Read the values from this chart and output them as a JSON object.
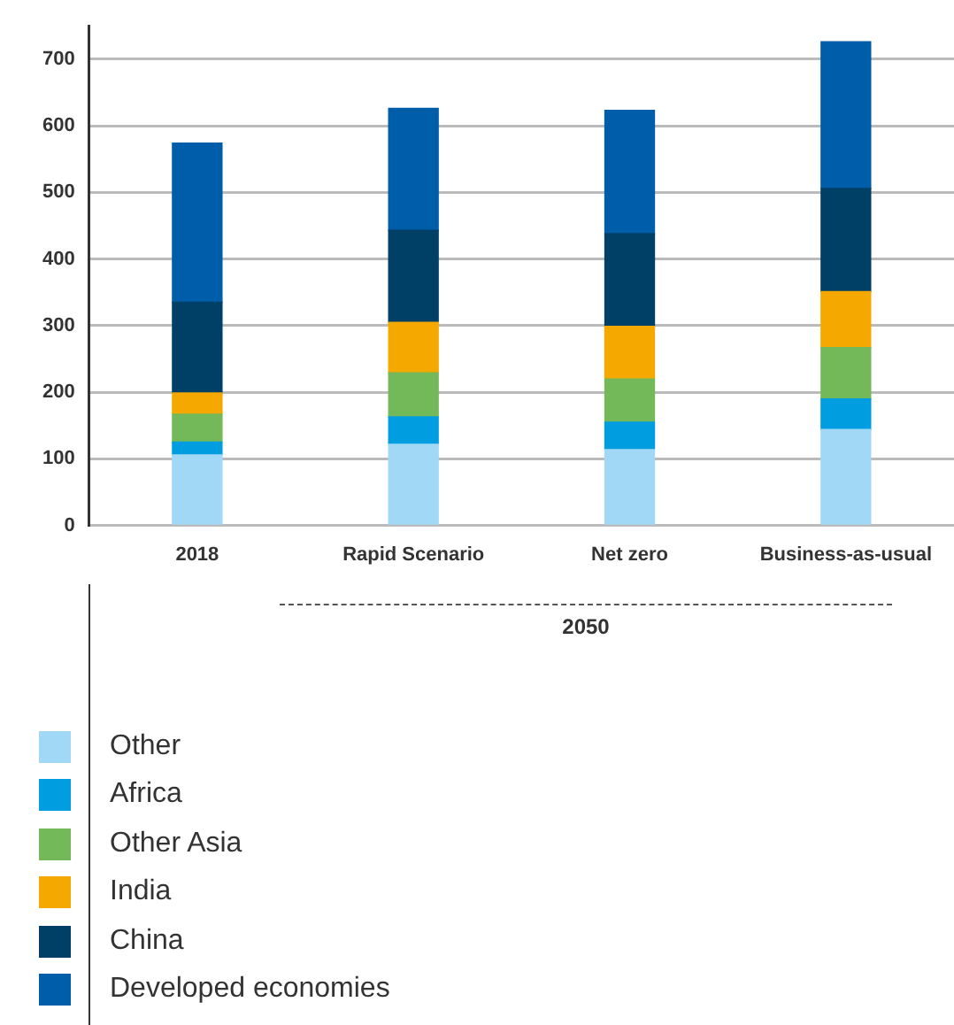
{
  "chart_data": {
    "type": "bar",
    "stacked": true,
    "categories": [
      "2018",
      "Rapid Scenario",
      "Net zero",
      "Business-as-usual"
    ],
    "series": [
      {
        "name": "Other",
        "color": "#a0d8f5",
        "values": [
          106,
          122,
          114,
          144
        ]
      },
      {
        "name": "Africa",
        "color": "#009ee0",
        "values": [
          19,
          41,
          41,
          46
        ]
      },
      {
        "name": "Other Asia",
        "color": "#74b959",
        "values": [
          42,
          66,
          65,
          77
        ]
      },
      {
        "name": "India",
        "color": "#f5a800",
        "values": [
          32,
          76,
          79,
          84
        ]
      },
      {
        "name": "China",
        "color": "#003f66",
        "values": [
          136,
          138,
          139,
          155
        ]
      },
      {
        "name": "Developed economies",
        "color": "#005daa",
        "values": [
          239,
          183,
          185,
          220
        ]
      }
    ],
    "ylim": [
      0,
      750
    ],
    "yticks": [
      0,
      100,
      200,
      300,
      400,
      500,
      600,
      700
    ],
    "grid": "y",
    "legend": "bottom",
    "annotations": [
      "2050"
    ]
  }
}
